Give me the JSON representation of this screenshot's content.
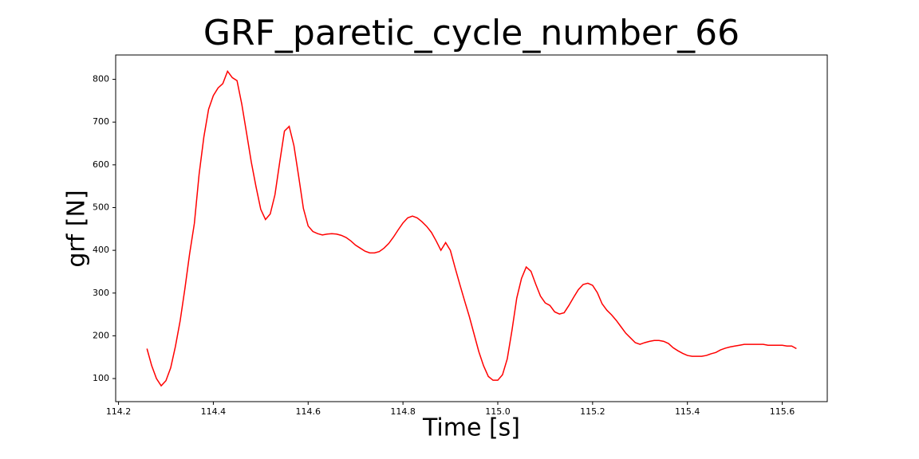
{
  "chart_data": {
    "type": "line",
    "title": "GRF_paretic_cycle_number_66",
    "x_label": "Time [s]",
    "y_label": "grf [N]",
    "x": [
      114.26,
      114.27,
      114.28,
      114.29,
      114.3,
      114.31,
      114.32,
      114.33,
      114.34,
      114.35,
      114.36,
      114.37,
      114.38,
      114.39,
      114.4,
      114.41,
      114.42,
      114.43,
      114.44,
      114.45,
      114.46,
      114.47,
      114.48,
      114.49,
      114.5,
      114.51,
      114.52,
      114.53,
      114.54,
      114.55,
      114.56,
      114.57,
      114.58,
      114.59,
      114.6,
      114.61,
      114.62,
      114.63,
      114.64,
      114.65,
      114.66,
      114.67,
      114.68,
      114.69,
      114.7,
      114.71,
      114.72,
      114.73,
      114.74,
      114.75,
      114.76,
      114.77,
      114.78,
      114.79,
      114.8,
      114.81,
      114.82,
      114.83,
      114.84,
      114.85,
      114.86,
      114.87,
      114.88,
      114.89,
      114.9,
      114.91,
      114.92,
      114.93,
      114.94,
      114.95,
      114.96,
      114.97,
      114.98,
      114.99,
      115.0,
      115.01,
      115.02,
      115.03,
      115.04,
      115.05,
      115.06,
      115.07,
      115.08,
      115.09,
      115.1,
      115.11,
      115.12,
      115.13,
      115.14,
      115.15,
      115.16,
      115.17,
      115.18,
      115.19,
      115.2,
      115.21,
      115.22,
      115.23,
      115.24,
      115.25,
      115.26,
      115.27,
      115.28,
      115.29,
      115.3,
      115.31,
      115.32,
      115.33,
      115.34,
      115.35,
      115.36,
      115.37,
      115.38,
      115.39,
      115.4,
      115.41,
      115.42,
      115.43,
      115.44,
      115.45,
      115.46,
      115.47,
      115.48,
      115.49,
      115.5,
      115.51,
      115.52,
      115.53,
      115.54,
      115.55,
      115.56,
      115.57,
      115.58,
      115.59,
      115.6,
      115.61,
      115.62,
      115.63
    ],
    "series": [
      {
        "color": "#ff0000",
        "values": [
          170,
          130,
          100,
          83,
          95,
          125,
          175,
          235,
          310,
          392,
          463,
          578,
          665,
          730,
          762,
          780,
          790,
          819,
          804,
          797,
          742,
          675,
          607,
          549,
          496,
          472,
          485,
          530,
          606,
          679,
          690,
          645,
          573,
          498,
          457,
          444,
          439,
          436,
          438,
          439,
          438,
          435,
          430,
          422,
          412,
          405,
          398,
          394,
          394,
          397,
          405,
          416,
          431,
          448,
          464,
          476,
          480,
          476,
          467,
          456,
          442,
          422,
          400,
          418,
          400,
          359,
          320,
          282,
          245,
          204,
          163,
          130,
          105,
          96,
          96,
          109,
          146,
          213,
          288,
          334,
          361,
          351,
          321,
          293,
          277,
          271,
          256,
          251,
          254,
          271,
          290,
          308,
          320,
          323,
          318,
          301,
          275,
          260,
          249,
          236,
          221,
          206,
          195,
          184,
          180,
          184,
          187,
          189,
          189,
          187,
          182,
          172,
          165,
          159,
          154,
          152,
          152,
          152,
          154,
          158,
          161,
          167,
          171,
          174,
          176,
          178,
          180,
          180,
          180,
          180,
          180,
          178,
          178,
          178,
          178,
          176,
          176,
          170
        ]
      }
    ],
    "xlim": [
      114.194,
      115.695
    ],
    "ylim": [
      46,
      857
    ],
    "xticks": [
      114.2,
      114.4,
      114.6,
      114.8,
      {
        "value": 115,
        "label": "115.0"
      },
      115.2,
      115.4,
      115.6
    ],
    "yticks": [
      100,
      200,
      300,
      400,
      500,
      600,
      700,
      800
    ]
  }
}
